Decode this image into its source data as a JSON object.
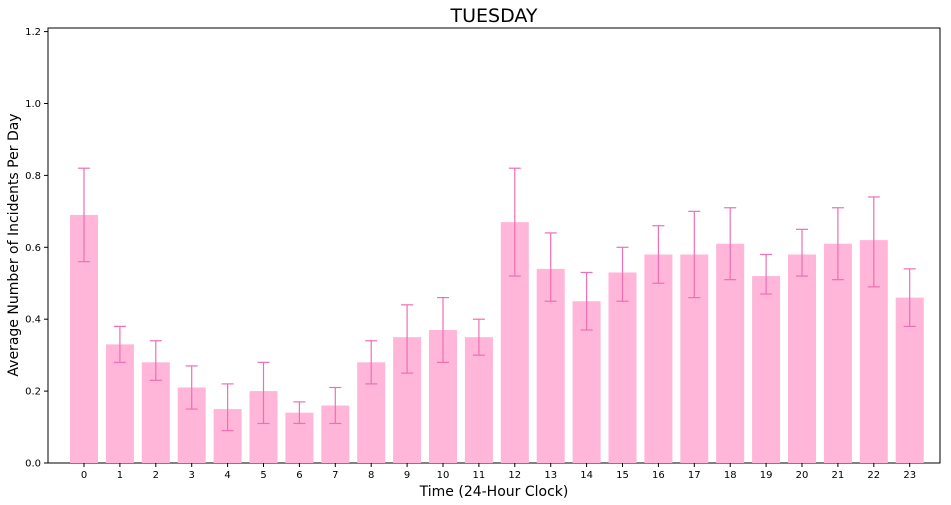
{
  "chart_data": {
    "type": "bar",
    "title": "TUESDAY",
    "xlabel": "Time (24-Hour Clock)",
    "ylabel": "Average Number of Incidents Per Day",
    "ylim": [
      0,
      1.21
    ],
    "yticks": [
      "0.0",
      "0.2",
      "0.4",
      "0.6",
      "0.8",
      "1.0",
      "1.2"
    ],
    "grid": false,
    "colors": {
      "bar": "#ffb6d9",
      "error": "#f06eb4"
    },
    "categories": [
      "0",
      "1",
      "2",
      "3",
      "4",
      "5",
      "6",
      "7",
      "8",
      "9",
      "10",
      "11",
      "12",
      "13",
      "14",
      "15",
      "16",
      "17",
      "18",
      "19",
      "20",
      "21",
      "22",
      "23"
    ],
    "values": [
      0.69,
      0.33,
      0.28,
      0.21,
      0.15,
      0.2,
      0.14,
      0.16,
      0.28,
      0.35,
      0.37,
      0.35,
      0.67,
      0.54,
      0.45,
      0.53,
      0.58,
      0.58,
      0.61,
      0.52,
      0.58,
      0.61,
      0.62,
      0.46
    ],
    "error_low": [
      0.56,
      0.28,
      0.23,
      0.15,
      0.09,
      0.11,
      0.11,
      0.11,
      0.22,
      0.25,
      0.28,
      0.3,
      0.52,
      0.45,
      0.37,
      0.45,
      0.5,
      0.46,
      0.51,
      0.47,
      0.52,
      0.51,
      0.49,
      0.38
    ],
    "error_high": [
      0.82,
      0.38,
      0.34,
      0.27,
      0.22,
      0.28,
      0.17,
      0.21,
      0.34,
      0.44,
      0.46,
      0.4,
      0.82,
      0.64,
      0.53,
      0.6,
      0.66,
      0.7,
      0.71,
      0.58,
      0.65,
      0.71,
      0.74,
      0.54
    ]
  }
}
